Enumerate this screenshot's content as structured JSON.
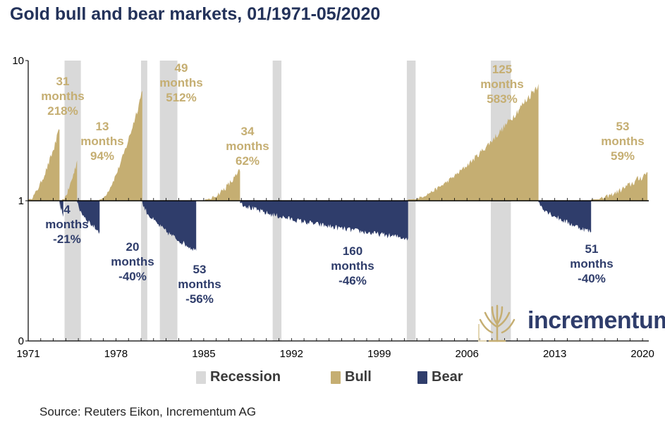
{
  "title": "Gold bull and bear markets, 01/1971-05/2020",
  "source": "Source: Reuters Eikon, Incrementum AG",
  "logo": {
    "text": "incrementum",
    "icon": "tree-icon"
  },
  "colors": {
    "bull": "#c5ae72",
    "bear": "#2f3d6b",
    "recession": "#d9d9d9",
    "title": "#23325a",
    "annotation_bull": "#c5ae72",
    "annotation_bear": "#2f3d6b"
  },
  "chart_data": {
    "type": "area",
    "title": "Gold bull and bear markets, 01/1971-05/2020",
    "y_scale": "log",
    "y_ticks": [
      "10",
      "1",
      "0"
    ],
    "x_ticks": [
      "1971",
      "1978",
      "1985",
      "1992",
      "1999",
      "2006",
      "2013",
      "2020"
    ],
    "xlim": [
      1971,
      2020.5
    ],
    "legend": [
      "Recession",
      "Bull",
      "Bear"
    ],
    "legend_position": "bottom",
    "recessions": [
      [
        1973.9,
        1975.2
      ],
      [
        1980.0,
        1980.5
      ],
      [
        1981.5,
        1982.9
      ],
      [
        1990.5,
        1991.2
      ],
      [
        2001.2,
        2001.9
      ],
      [
        2007.9,
        2009.5
      ]
    ],
    "bull_markets": [
      {
        "start": 1971.0,
        "end": 1973.5,
        "peak": 3.2,
        "label_lines": [
          "31",
          "months",
          "218%"
        ]
      },
      {
        "start": 1973.7,
        "end": 1974.9,
        "peak": 1.94,
        "label_lines": [
          "13",
          "months",
          "94%"
        ]
      },
      {
        "start": 1976.7,
        "end": 1980.1,
        "peak": 6.1,
        "label_lines": [
          "49",
          "months",
          "512%"
        ]
      },
      {
        "start": 1985.1,
        "end": 1987.9,
        "peak": 1.62,
        "label_lines": [
          "34",
          "months",
          "62%"
        ]
      },
      {
        "start": 2001.3,
        "end": 2011.7,
        "peak": 6.83,
        "label_lines": [
          "125",
          "months",
          "583%"
        ]
      },
      {
        "start": 2015.9,
        "end": 2020.4,
        "peak": 1.59,
        "label_lines": [
          "53",
          "months",
          "59%"
        ]
      }
    ],
    "bear_markets": [
      {
        "start": 1973.5,
        "end": 1973.8,
        "trough": 0.79,
        "label_lines": [
          "4",
          "months",
          "-21%"
        ]
      },
      {
        "start": 1974.9,
        "end": 1976.7,
        "trough": 0.6,
        "label_lines": [
          "20",
          "months",
          "-40%"
        ]
      },
      {
        "start": 1980.1,
        "end": 1984.4,
        "trough": 0.44,
        "label_lines": [
          "53",
          "months",
          "-56%"
        ]
      },
      {
        "start": 1987.9,
        "end": 2001.3,
        "trough": 0.54,
        "label_lines": [
          "160",
          "months",
          "-46%"
        ]
      },
      {
        "start": 2011.7,
        "end": 2015.9,
        "trough": 0.6,
        "label_lines": [
          "51",
          "months",
          "-40%"
        ]
      }
    ]
  }
}
